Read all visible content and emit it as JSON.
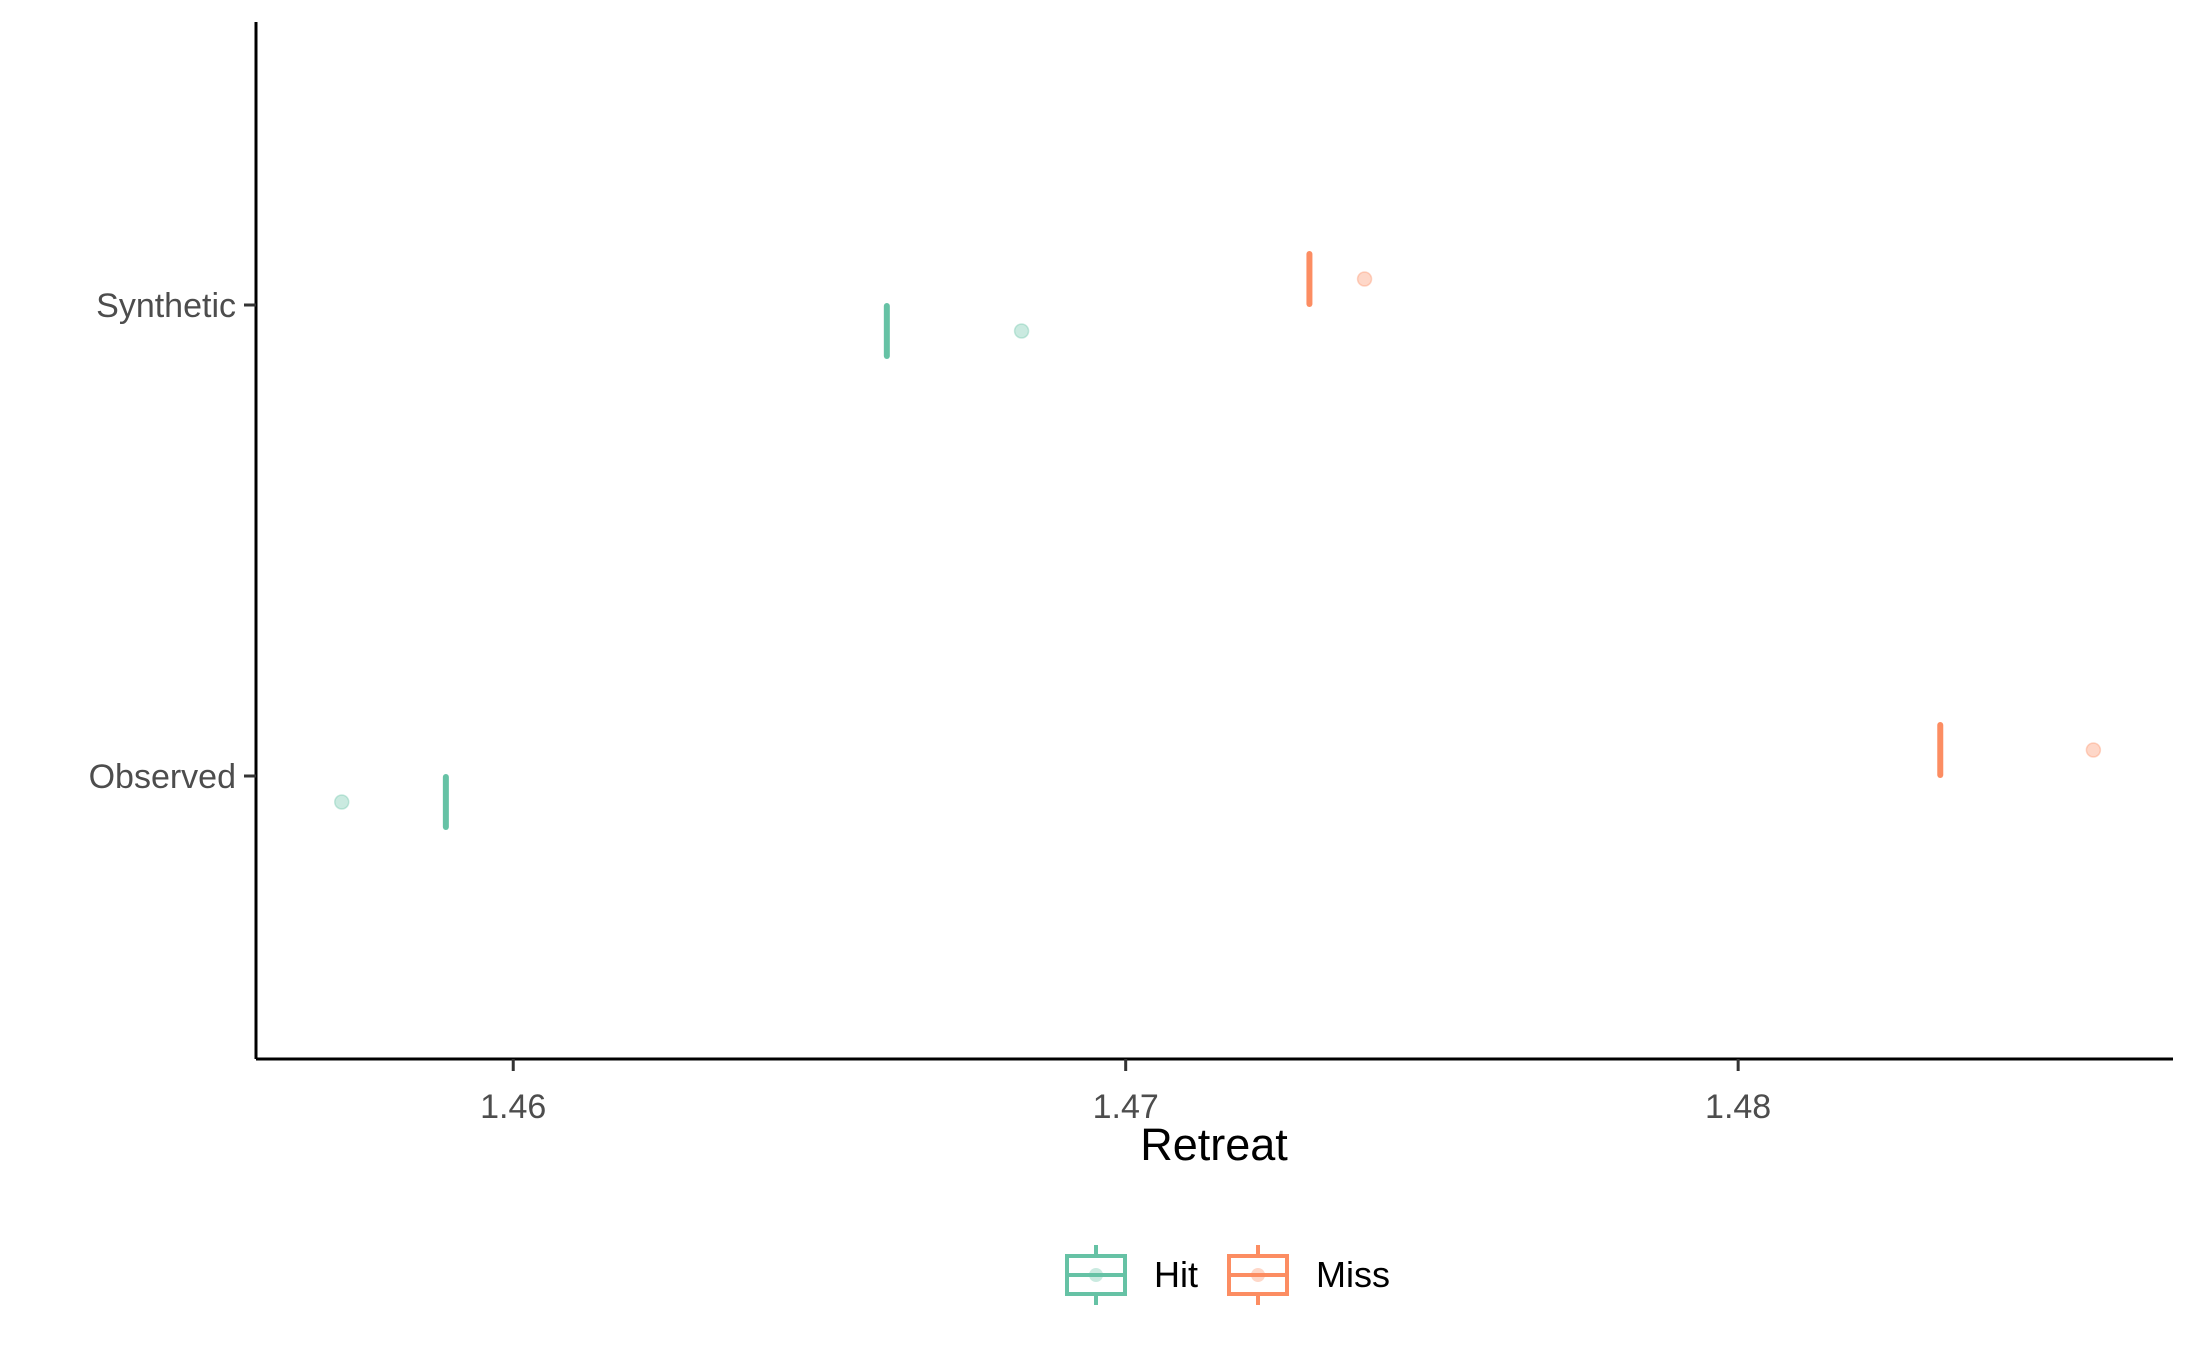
{
  "chart_data": {
    "type": "boxplot",
    "title": "",
    "xlabel": "Retreat",
    "ylabel": "",
    "xlim": [
      1.4558,
      1.4871
    ],
    "x_ticks": [
      1.46,
      1.47,
      1.48
    ],
    "x_tick_labels": [
      "1.46",
      "1.47",
      "1.48"
    ],
    "categories": [
      "Synthetic",
      "Observed"
    ],
    "grid": false,
    "legend_position": "bottom",
    "series": [
      {
        "name": "Hit",
        "color": "#66c2a5",
        "data": [
          {
            "category": "Synthetic",
            "median": 1.4661,
            "outlier": 1.4683
          },
          {
            "category": "Observed",
            "median": 1.4589,
            "outlier": 1.4572
          }
        ]
      },
      {
        "name": "Miss",
        "color": "#fc8d62",
        "data": [
          {
            "category": "Synthetic",
            "median": 1.473,
            "outlier": 1.4739
          },
          {
            "category": "Observed",
            "median": 1.4833,
            "outlier": 1.4858
          }
        ]
      }
    ]
  }
}
